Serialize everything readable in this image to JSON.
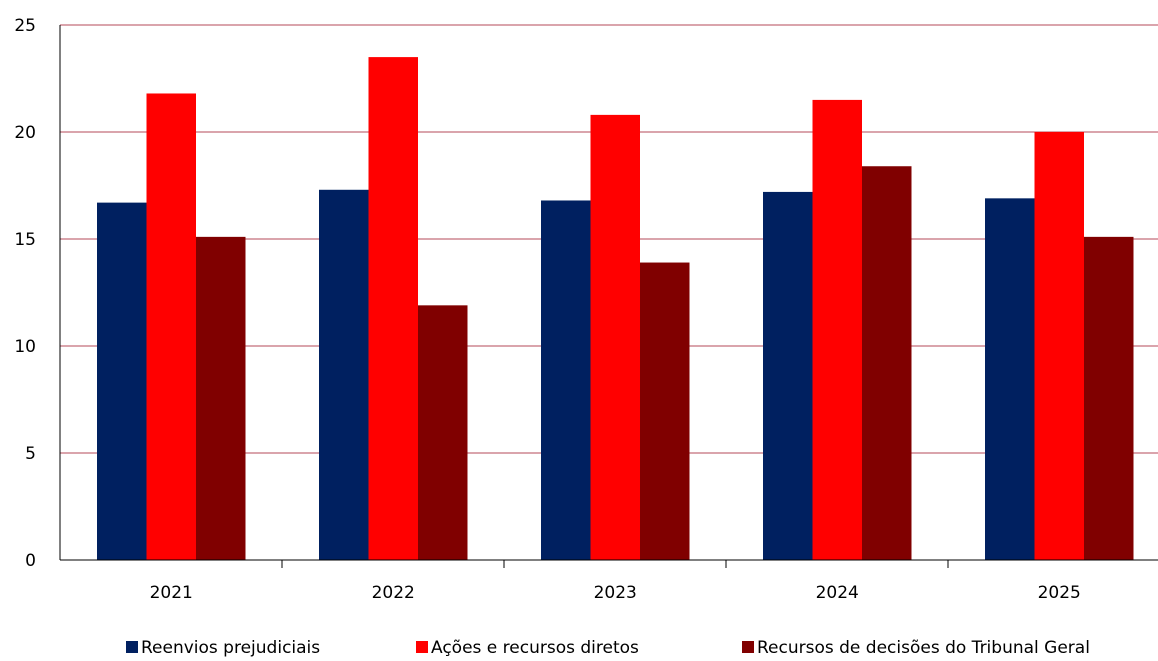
{
  "chart_data": {
    "type": "bar",
    "title": "",
    "xlabel": "",
    "ylabel": "",
    "categories": [
      "2021",
      "2022",
      "2023",
      "2024",
      "2025"
    ],
    "ylim": [
      0,
      25
    ],
    "yticks": [
      0,
      5,
      10,
      15,
      20,
      25
    ],
    "grid": true,
    "legend_position": "bottom",
    "series": [
      {
        "name": "Reenvios prejudiciais",
        "color": "#002060",
        "values": [
          16.7,
          17.3,
          16.8,
          17.2,
          16.9
        ]
      },
      {
        "name": "Ações e recursos diretos",
        "color": "#ff0000",
        "values": [
          21.8,
          23.5,
          20.8,
          21.5,
          20.0
        ]
      },
      {
        "name": "Recursos de decisões do Tribunal Geral",
        "color": "#800000",
        "values": [
          15.1,
          11.9,
          13.9,
          18.4,
          15.1
        ]
      }
    ],
    "gridline_color": "#b5485a",
    "axis_color": "#000000"
  }
}
